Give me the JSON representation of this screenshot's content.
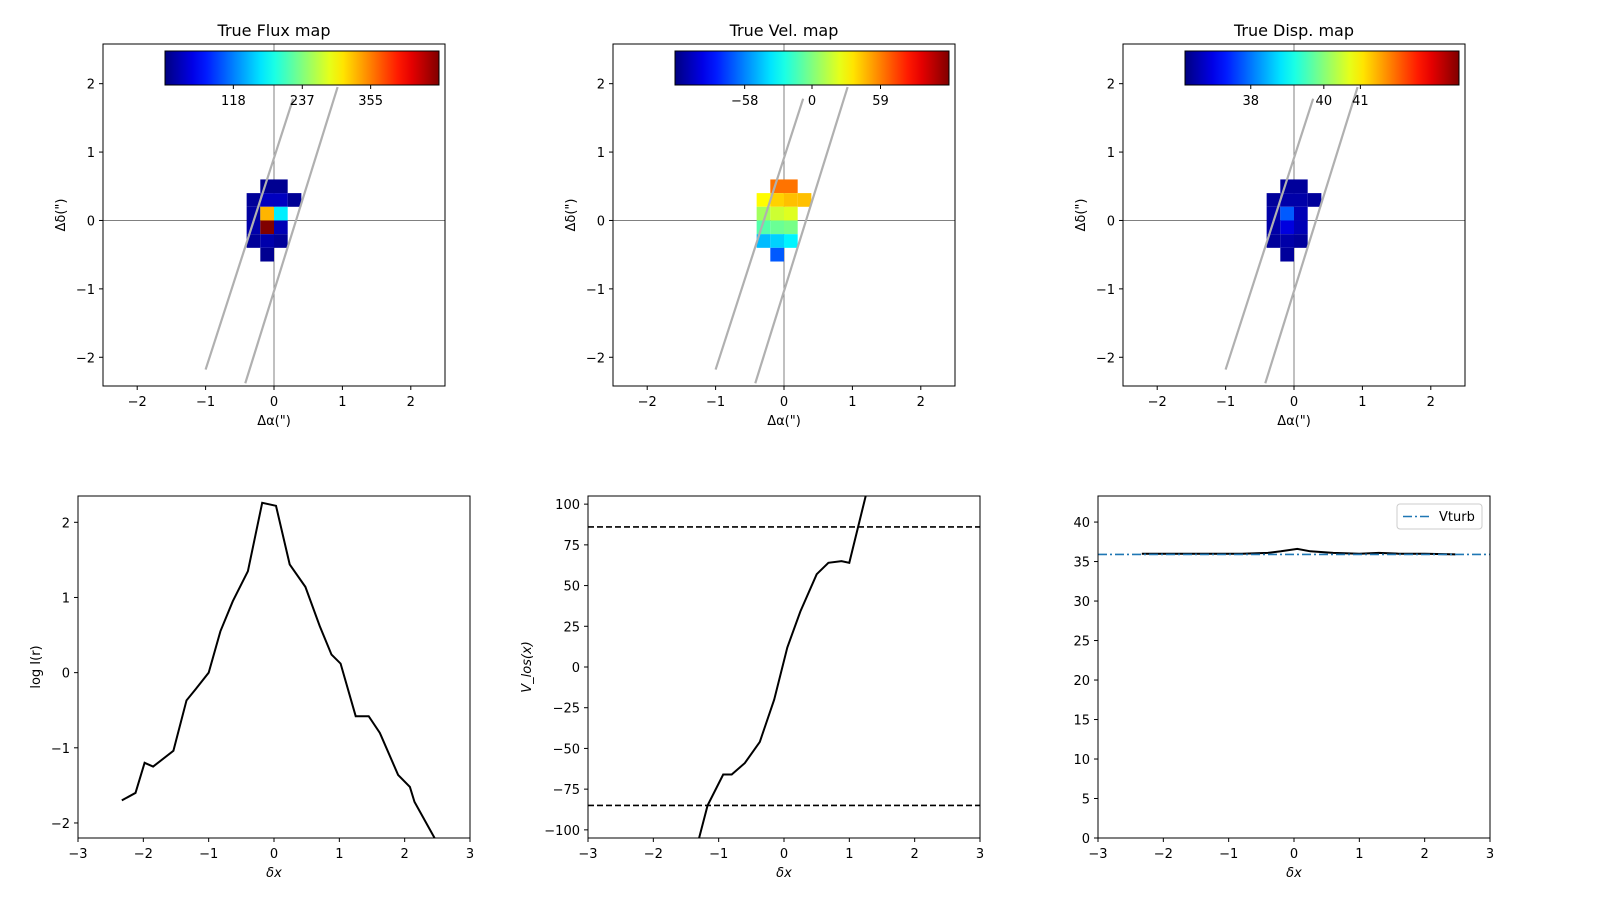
{
  "chart_data": [
    {
      "type": "heatmap",
      "title": "True Flux map",
      "xlabel": "Δα(\")",
      "ylabel": "Δδ(\")",
      "xlim": [
        -2.5,
        2.5
      ],
      "ylim": [
        -2.42,
        2.58
      ],
      "xticks": [
        -2,
        -1,
        0,
        1,
        2
      ],
      "yticks": [
        -2,
        -1,
        0,
        1,
        2
      ],
      "xtick_labels": [
        "−2",
        "−1",
        "0",
        "1",
        "2"
      ],
      "ytick_labels": [
        "−2",
        "−1",
        "0",
        "1",
        "2"
      ],
      "colorbar": {
        "colormap": "jet",
        "range": [
          0,
          473
        ],
        "ticks": [
          118,
          237,
          355
        ],
        "tick_labels": [
          "118",
          "237",
          "355"
        ],
        "placement": "top inset"
      },
      "pixel_size": 0.2,
      "pixels": [
        {
          "x": -0.1,
          "y": 0.5,
          "v": 8
        },
        {
          "x": 0.1,
          "y": 0.5,
          "v": 8
        },
        {
          "x": -0.3,
          "y": 0.3,
          "v": 12
        },
        {
          "x": -0.1,
          "y": 0.3,
          "v": 30
        },
        {
          "x": 0.1,
          "y": 0.3,
          "v": 30
        },
        {
          "x": 0.3,
          "y": 0.3,
          "v": 10
        },
        {
          "x": -0.3,
          "y": 0.1,
          "v": 15
        },
        {
          "x": -0.1,
          "y": 0.1,
          "v": 330
        },
        {
          "x": 0.1,
          "y": 0.1,
          "v": 170
        },
        {
          "x": -0.3,
          "y": -0.1,
          "v": 20
        },
        {
          "x": -0.1,
          "y": -0.1,
          "v": 473
        },
        {
          "x": 0.1,
          "y": -0.1,
          "v": 25
        },
        {
          "x": -0.3,
          "y": -0.3,
          "v": 12
        },
        {
          "x": -0.1,
          "y": -0.3,
          "v": 20
        },
        {
          "x": 0.1,
          "y": -0.3,
          "v": 12
        },
        {
          "x": -0.1,
          "y": -0.5,
          "v": 8
        }
      ],
      "slit_lines": [
        {
          "x1": -1.0,
          "y1": -2.18,
          "x2": 0.28,
          "y2": 1.78
        },
        {
          "x1": -0.42,
          "y1": -2.38,
          "x2": 0.93,
          "y2": 1.95
        }
      ]
    },
    {
      "type": "heatmap",
      "title": "True Vel. map",
      "xlabel": "Δα(\")",
      "ylabel": "Δδ(\")",
      "xlim": [
        -2.5,
        2.5
      ],
      "ylim": [
        -2.42,
        2.58
      ],
      "xticks": [
        -2,
        -1,
        0,
        1,
        2
      ],
      "yticks": [
        -2,
        -1,
        0,
        1,
        2
      ],
      "xtick_labels": [
        "−2",
        "−1",
        "0",
        "1",
        "2"
      ],
      "ytick_labels": [
        "−2",
        "−1",
        "0",
        "1",
        "2"
      ],
      "colorbar": {
        "colormap": "jet",
        "range": [
          -118,
          118
        ],
        "ticks": [
          -58,
          0,
          59
        ],
        "tick_labels": [
          "−58",
          "0",
          "59"
        ],
        "placement": "top inset"
      },
      "pixel_size": 0.2,
      "pixels": [
        {
          "x": -0.1,
          "y": 0.5,
          "v": 62
        },
        {
          "x": 0.1,
          "y": 0.5,
          "v": 62
        },
        {
          "x": -0.3,
          "y": 0.3,
          "v": 30
        },
        {
          "x": -0.1,
          "y": 0.3,
          "v": 40
        },
        {
          "x": 0.1,
          "y": 0.3,
          "v": 44
        },
        {
          "x": 0.3,
          "y": 0.3,
          "v": 44
        },
        {
          "x": -0.3,
          "y": 0.1,
          "v": 8
        },
        {
          "x": -0.1,
          "y": 0.1,
          "v": 18
        },
        {
          "x": 0.1,
          "y": 0.1,
          "v": 22
        },
        {
          "x": -0.3,
          "y": -0.1,
          "v": -10
        },
        {
          "x": -0.1,
          "y": -0.1,
          "v": -5
        },
        {
          "x": 0.1,
          "y": -0.1,
          "v": -2
        },
        {
          "x": -0.3,
          "y": -0.3,
          "v": -45
        },
        {
          "x": -0.1,
          "y": -0.3,
          "v": -40
        },
        {
          "x": 0.1,
          "y": -0.3,
          "v": -32
        },
        {
          "x": -0.1,
          "y": -0.5,
          "v": -68
        }
      ],
      "slit_lines": [
        {
          "x1": -1.0,
          "y1": -2.18,
          "x2": 0.28,
          "y2": 1.78
        },
        {
          "x1": -0.42,
          "y1": -2.38,
          "x2": 0.93,
          "y2": 1.95
        }
      ]
    },
    {
      "type": "heatmap",
      "title": "True Disp. map",
      "xlabel": "Δα(\")",
      "ylabel": "Δδ(\")",
      "xlim": [
        -2.5,
        2.5
      ],
      "ylim": [
        -2.42,
        2.58
      ],
      "xticks": [
        -2,
        -1,
        0,
        1,
        2
      ],
      "yticks": [
        -2,
        -1,
        0,
        1,
        2
      ],
      "xtick_labels": [
        "−2",
        "−1",
        "0",
        "1",
        "2"
      ],
      "ytick_labels": [
        "−2",
        "−1",
        "0",
        "1",
        "2"
      ],
      "colorbar": {
        "colormap": "jet",
        "range": [
          36.2,
          43.7
        ],
        "ticks": [
          38,
          40,
          41
        ],
        "tick_labels": [
          "38",
          "40",
          "41"
        ],
        "placement": "top inset"
      },
      "pixel_size": 0.2,
      "pixels": [
        {
          "x": -0.1,
          "y": 0.5,
          "v": 36.4
        },
        {
          "x": 0.1,
          "y": 0.5,
          "v": 36.4
        },
        {
          "x": -0.3,
          "y": 0.3,
          "v": 36.4
        },
        {
          "x": -0.1,
          "y": 0.3,
          "v": 36.5
        },
        {
          "x": 0.1,
          "y": 0.3,
          "v": 36.5
        },
        {
          "x": 0.3,
          "y": 0.3,
          "v": 36.4
        },
        {
          "x": -0.3,
          "y": 0.1,
          "v": 36.5
        },
        {
          "x": -0.1,
          "y": 0.1,
          "v": 37.8
        },
        {
          "x": 0.1,
          "y": 0.1,
          "v": 36.6
        },
        {
          "x": -0.3,
          "y": -0.1,
          "v": 36.5
        },
        {
          "x": -0.1,
          "y": -0.1,
          "v": 36.9
        },
        {
          "x": 0.1,
          "y": -0.1,
          "v": 36.6
        },
        {
          "x": -0.3,
          "y": -0.3,
          "v": 36.4
        },
        {
          "x": -0.1,
          "y": -0.3,
          "v": 36.5
        },
        {
          "x": 0.1,
          "y": -0.3,
          "v": 36.4
        },
        {
          "x": -0.1,
          "y": -0.5,
          "v": 36.4
        }
      ],
      "slit_lines": [
        {
          "x1": -1.0,
          "y1": -2.18,
          "x2": 0.28,
          "y2": 1.78
        },
        {
          "x1": -0.42,
          "y1": -2.38,
          "x2": 0.93,
          "y2": 1.95
        }
      ]
    },
    {
      "type": "line",
      "title": "",
      "xlabel": "δx",
      "ylabel": "log I(r)",
      "xlim": [
        -3,
        3
      ],
      "ylim": [
        -2.2,
        2.35
      ],
      "xticks": [
        -3,
        -2,
        -1,
        0,
        1,
        2,
        3
      ],
      "xtick_labels": [
        "−3",
        "−2",
        "−1",
        "0",
        "1",
        "2",
        "3"
      ],
      "yticks": [
        -2,
        -1,
        0,
        1,
        2
      ],
      "ytick_labels": [
        "−2",
        "−1",
        "0",
        "1",
        "2"
      ],
      "series": [
        {
          "color": "#000000",
          "x": [
            -2.33,
            -2.12,
            -1.98,
            -1.85,
            -1.54,
            -1.34,
            -1.2,
            -1.0,
            -0.82,
            -0.63,
            -0.4,
            -0.18,
            0.03,
            0.24,
            0.48,
            0.7,
            0.88,
            1.02,
            1.25,
            1.45,
            1.62,
            1.9,
            2.08,
            2.15,
            2.47
          ],
          "y": [
            -1.7,
            -1.6,
            -1.2,
            -1.25,
            -1.04,
            -0.37,
            -0.22,
            0.0,
            0.55,
            0.95,
            1.35,
            2.26,
            2.22,
            1.44,
            1.14,
            0.62,
            0.24,
            0.12,
            -0.58,
            -0.58,
            -0.8,
            -1.36,
            -1.52,
            -1.72,
            -2.22
          ]
        }
      ]
    },
    {
      "type": "line",
      "title": "",
      "xlabel": "δx",
      "ylabel": "V_los(x)",
      "xlim": [
        -3,
        3
      ],
      "ylim": [
        -105,
        105
      ],
      "xticks": [
        -3,
        -2,
        -1,
        0,
        1,
        2,
        3
      ],
      "xtick_labels": [
        "−3",
        "−2",
        "−1",
        "0",
        "1",
        "2",
        "3"
      ],
      "yticks": [
        -100,
        -75,
        -50,
        -25,
        0,
        25,
        50,
        75,
        100
      ],
      "ytick_labels": [
        "−100",
        "−75",
        "−50",
        "−25",
        "0",
        "25",
        "50",
        "75",
        "100"
      ],
      "hlines": [
        86,
        -85
      ],
      "series": [
        {
          "color": "#000000",
          "x": [
            -1.3,
            -1.17,
            -0.93,
            -0.8,
            -0.6,
            -0.37,
            -0.15,
            0.05,
            0.25,
            0.5,
            0.68,
            0.88,
            1.0,
            1.25
          ],
          "y": [
            -105,
            -85,
            -66,
            -66,
            -59,
            -46,
            -20,
            12,
            34,
            57,
            64,
            65,
            64,
            105
          ]
        }
      ]
    },
    {
      "type": "line",
      "title": "",
      "xlabel": "δx",
      "ylabel": "",
      "xlim": [
        -3,
        3
      ],
      "ylim": [
        0,
        43.3
      ],
      "xticks": [
        -3,
        -2,
        -1,
        0,
        1,
        2,
        3
      ],
      "xtick_labels": [
        "−3",
        "−2",
        "−1",
        "0",
        "1",
        "2",
        "3"
      ],
      "yticks": [
        0,
        5,
        10,
        15,
        20,
        25,
        30,
        35,
        40
      ],
      "ytick_labels": [
        "0",
        "5",
        "10",
        "15",
        "20",
        "25",
        "30",
        "35",
        "40"
      ],
      "legend": {
        "placement": "top-right",
        "entries": [
          "Vturb"
        ]
      },
      "series": [
        {
          "color": "#000000",
          "x": [
            -2.33,
            -2.0,
            -1.6,
            -1.2,
            -0.8,
            -0.4,
            -0.2,
            0.05,
            0.25,
            0.6,
            1.0,
            1.3,
            1.6,
            2.0,
            2.47
          ],
          "y": [
            36.0,
            36.0,
            36.0,
            36.0,
            36.0,
            36.1,
            36.3,
            36.6,
            36.3,
            36.1,
            36.0,
            36.1,
            36.0,
            36.0,
            35.9
          ]
        },
        {
          "name": "Vturb",
          "color": "#1f77b4",
          "style": "dashdot",
          "x": [
            -3,
            3
          ],
          "y": [
            35.9,
            35.9
          ]
        }
      ]
    }
  ]
}
